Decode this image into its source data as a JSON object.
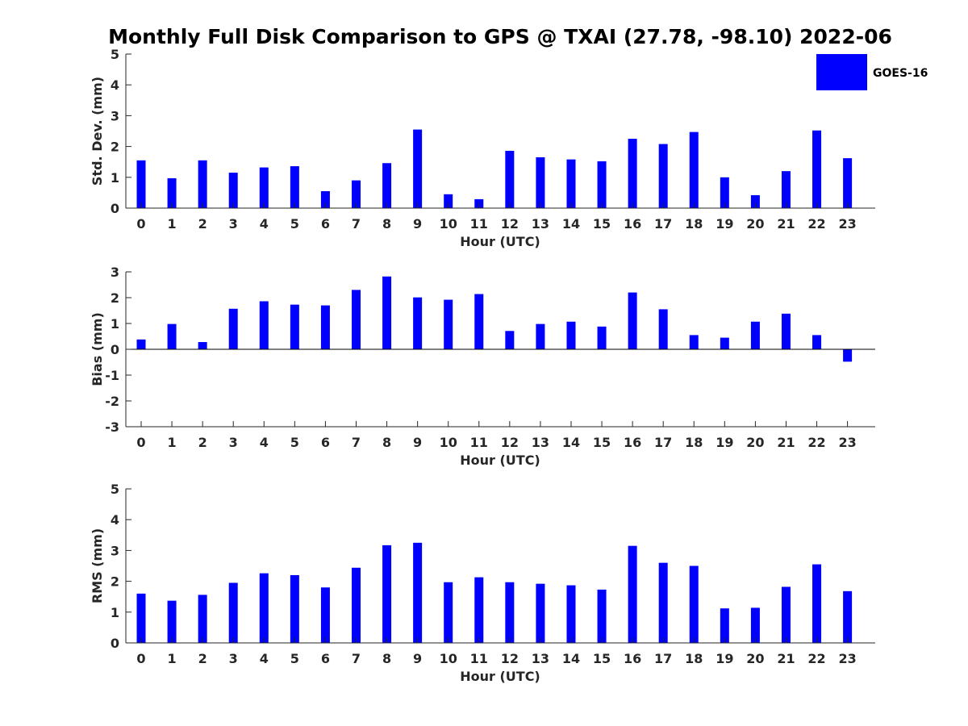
{
  "title": "Monthly Full Disk Comparison to GPS @ TXAI (27.78, -98.10) 2022-06",
  "colors": {
    "bar": "#0000ff",
    "axis": "#262626"
  },
  "legend": {
    "label": "GOES-16",
    "placement": "top-right"
  },
  "chart_data": [
    {
      "type": "bar",
      "xlabel": "Hour (UTC)",
      "ylabel": "Std. Dev. (mm)",
      "ylim": [
        0,
        5
      ],
      "yticks": [
        0,
        1,
        2,
        3,
        4,
        5
      ],
      "categories": [
        "0",
        "1",
        "2",
        "3",
        "4",
        "5",
        "6",
        "7",
        "8",
        "9",
        "10",
        "11",
        "12",
        "13",
        "14",
        "15",
        "16",
        "17",
        "18",
        "19",
        "20",
        "21",
        "22",
        "23"
      ],
      "series": [
        {
          "name": "GOES-16",
          "values": [
            1.55,
            0.97,
            1.55,
            1.15,
            1.32,
            1.36,
            0.55,
            0.9,
            1.46,
            2.55,
            0.45,
            0.29,
            1.86,
            1.65,
            1.58,
            1.52,
            2.25,
            2.08,
            2.47,
            1.0,
            0.42,
            1.2,
            2.52,
            1.62
          ]
        }
      ]
    },
    {
      "type": "bar",
      "xlabel": "Hour (UTC)",
      "ylabel": "Bias (mm)",
      "ylim": [
        -3,
        3
      ],
      "yticks": [
        -3,
        -2,
        -1,
        0,
        1,
        2,
        3
      ],
      "categories": [
        "0",
        "1",
        "2",
        "3",
        "4",
        "5",
        "6",
        "7",
        "8",
        "9",
        "10",
        "11",
        "12",
        "13",
        "14",
        "15",
        "16",
        "17",
        "18",
        "19",
        "20",
        "21",
        "22",
        "23"
      ],
      "series": [
        {
          "name": "GOES-16",
          "values": [
            0.38,
            0.98,
            0.28,
            1.57,
            1.86,
            1.73,
            1.7,
            2.3,
            2.82,
            2.01,
            1.92,
            2.14,
            0.71,
            0.98,
            1.07,
            0.88,
            2.2,
            1.55,
            0.55,
            0.45,
            1.07,
            1.38,
            0.55,
            -0.48
          ]
        }
      ]
    },
    {
      "type": "bar",
      "xlabel": "Hour (UTC)",
      "ylabel": "RMS (mm)",
      "ylim": [
        0,
        5
      ],
      "yticks": [
        0,
        1,
        2,
        3,
        4,
        5
      ],
      "categories": [
        "0",
        "1",
        "2",
        "3",
        "4",
        "5",
        "6",
        "7",
        "8",
        "9",
        "10",
        "11",
        "12",
        "13",
        "14",
        "15",
        "16",
        "17",
        "18",
        "19",
        "20",
        "21",
        "22",
        "23"
      ],
      "series": [
        {
          "name": "GOES-16",
          "values": [
            1.6,
            1.37,
            1.56,
            1.95,
            2.26,
            2.2,
            1.8,
            2.44,
            3.17,
            3.25,
            1.97,
            2.13,
            1.97,
            1.92,
            1.87,
            1.73,
            3.15,
            2.6,
            2.5,
            1.12,
            1.14,
            1.82,
            2.55,
            1.68
          ]
        }
      ]
    }
  ]
}
